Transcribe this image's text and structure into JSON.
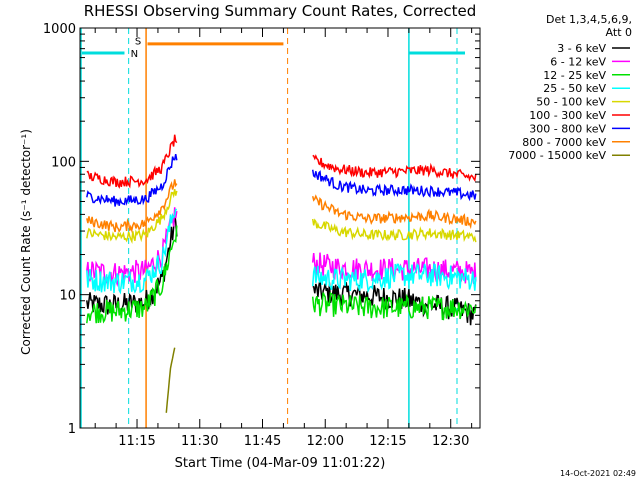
{
  "chart_data": {
    "type": "line",
    "title": "RHESSI Observing Summary Count Rates, Corrected",
    "xlabel": "Start Time (04-Mar-09 11:01:22)",
    "ylabel": "Corrected Count Rate (s⁻¹ detector⁻¹)",
    "x_axis": {
      "unit": "time",
      "range": [
        "11:01:22",
        "12:37:00"
      ],
      "ticks": [
        "11:15",
        "11:30",
        "11:45",
        "12:00",
        "12:15",
        "12:30"
      ]
    },
    "y_axis": {
      "scale": "log",
      "range": [
        1,
        1000
      ],
      "ticks": [
        "1",
        "10",
        "100",
        "1000"
      ]
    },
    "grid": false,
    "legend": {
      "placement": "right",
      "header": [
        "Det 1,3,4,5,6,9,",
        "Att 0"
      ]
    },
    "series": [
      {
        "name": "3 - 6 keV",
        "color": "#000000",
        "x": [
          "11:03",
          "11:10",
          "11:17",
          "11:21",
          "11:24",
          "11:58",
          "12:03",
          "12:10",
          "12:18",
          "12:25",
          "12:31",
          "12:36"
        ],
        "values": [
          8.5,
          8.3,
          8.8,
          13,
          34,
          10.5,
          10.2,
          9.8,
          9.3,
          8.4,
          7.8,
          7.0
        ]
      },
      {
        "name": "6 - 12 keV",
        "color": "#ff00ff",
        "x": [
          "11:03",
          "11:10",
          "11:17",
          "11:21",
          "11:24",
          "11:58",
          "12:03",
          "12:10",
          "12:18",
          "12:25",
          "12:31",
          "12:36"
        ],
        "values": [
          15,
          14.5,
          15,
          20,
          40,
          17,
          16,
          15.5,
          15.5,
          15.5,
          15,
          14.5
        ]
      },
      {
        "name": "12 - 25 keV",
        "color": "#00e000",
        "x": [
          "11:03",
          "11:10",
          "11:17",
          "11:21",
          "11:24",
          "11:58",
          "12:03",
          "12:10",
          "12:18",
          "12:25",
          "12:31",
          "12:36"
        ],
        "values": [
          7.5,
          7.5,
          8,
          12,
          28,
          8.5,
          8.3,
          8,
          8,
          8,
          8,
          8
        ]
      },
      {
        "name": "25 - 50 keV",
        "color": "#00ffff",
        "x": [
          "11:03",
          "11:10",
          "11:17",
          "11:21",
          "11:24",
          "11:58",
          "12:03",
          "12:10",
          "12:18",
          "12:25",
          "12:31",
          "12:36"
        ],
        "values": [
          13,
          12.5,
          13,
          18,
          45,
          13.5,
          13,
          13,
          14,
          14,
          13.5,
          13
        ]
      },
      {
        "name": "50 - 100 keV",
        "color": "#d8d800",
        "x": [
          "11:03",
          "11:10",
          "11:17",
          "11:21",
          "11:24",
          "11:58",
          "12:03",
          "12:10",
          "12:18",
          "12:25",
          "12:31",
          "12:36"
        ],
        "values": [
          29,
          27,
          28,
          38,
          60,
          34,
          30,
          28,
          28,
          29,
          28,
          27
        ]
      },
      {
        "name": "100 - 300 keV",
        "color": "#ff0000",
        "x": [
          "11:03",
          "11:10",
          "11:17",
          "11:21",
          "11:24",
          "11:58",
          "12:03",
          "12:10",
          "12:18",
          "12:25",
          "12:31",
          "12:36"
        ],
        "values": [
          78,
          70,
          72,
          90,
          145,
          100,
          88,
          82,
          84,
          86,
          80,
          75
        ]
      },
      {
        "name": "300 - 800 keV",
        "color": "#0000ff",
        "x": [
          "11:03",
          "11:10",
          "11:17",
          "11:21",
          "11:24",
          "11:58",
          "12:03",
          "12:10",
          "12:18",
          "12:25",
          "12:31",
          "12:36"
        ],
        "values": [
          55,
          50,
          52,
          66,
          110,
          80,
          66,
          60,
          61,
          60,
          58,
          55
        ]
      },
      {
        "name": "800 - 7000 keV",
        "color": "#ff8000",
        "x": [
          "11:03",
          "11:10",
          "11:17",
          "11:21",
          "11:24",
          "11:58",
          "12:03",
          "12:10",
          "12:18",
          "12:25",
          "12:31",
          "12:36"
        ],
        "values": [
          36,
          32,
          34,
          45,
          70,
          50,
          41,
          37,
          38,
          39,
          37,
          35
        ]
      },
      {
        "name": "7000 - 15000 keV",
        "color": "#808000",
        "x": [
          "11:22",
          "11:23",
          "11:24"
        ],
        "values": [
          1.3,
          2.8,
          4.0
        ]
      }
    ],
    "annotations": [
      {
        "label": "N",
        "color": "#00dddd"
      },
      {
        "label": "S",
        "color": "#ff8000"
      }
    ],
    "footer": "14-Oct-2021 02:49"
  }
}
